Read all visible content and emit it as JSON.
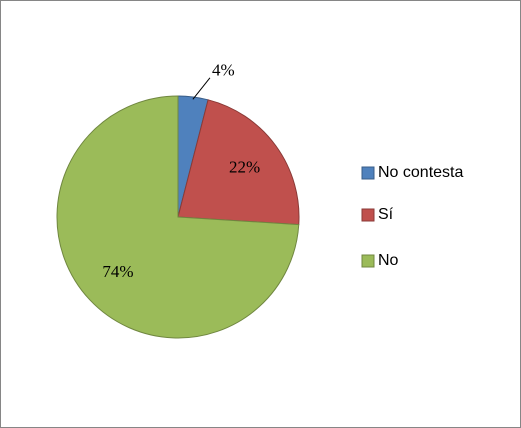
{
  "chart_data": {
    "type": "pie",
    "categories": [
      "No contesta",
      "Sí",
      "No"
    ],
    "values": [
      4,
      22,
      74
    ],
    "value_labels": [
      "4%",
      "22%",
      "74%"
    ],
    "colors": [
      "#4f81bd",
      "#c0504d",
      "#9bbb59"
    ],
    "legend": "right"
  }
}
